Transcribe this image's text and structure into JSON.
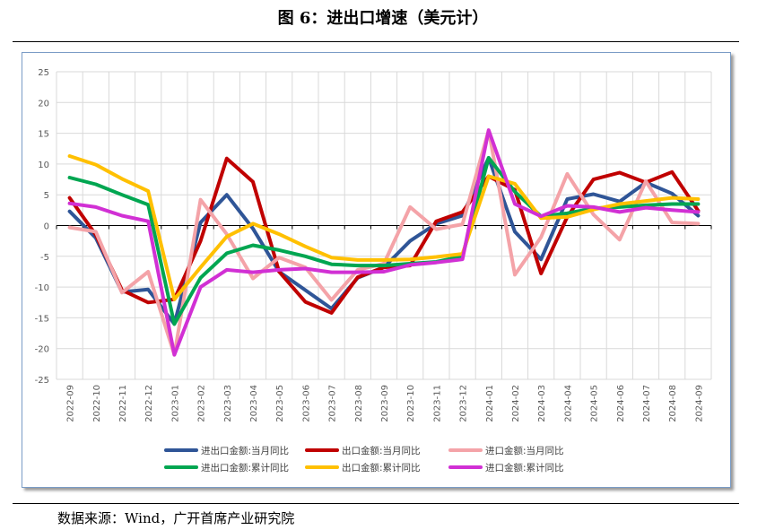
{
  "title": "图 6：进出口增速（美元计）",
  "source": "数据来源：Wind，广开首席产业研究院",
  "chart_data": {
    "type": "line",
    "title": "图 6：进出口增速（美元计）",
    "xlabel": "",
    "ylabel": "",
    "ylim": [
      -25,
      25
    ],
    "yticks": [
      25,
      20,
      15,
      10,
      5,
      0,
      -5,
      -10,
      -15,
      -20,
      -25
    ],
    "grid": true,
    "legend_position": "bottom",
    "categories": [
      "2022-09",
      "2022-10",
      "2022-11",
      "2022-12",
      "2023-01",
      "2023-02",
      "2023-03",
      "2023-04",
      "2023-05",
      "2023-06",
      "2023-07",
      "2023-08",
      "2023-09",
      "2023-10",
      "2023-11",
      "2023-12",
      "2024-01",
      "2024-02",
      "2024-03",
      "2024-04",
      "2024-05",
      "2024-06",
      "2024-07",
      "2024-08",
      "2024-09"
    ],
    "series": [
      {
        "name": "进出口金额:当月同比",
        "color": "#2f5597",
        "values": [
          2.3,
          -2.0,
          -10.8,
          -10.4,
          -16.0,
          0.5,
          5.0,
          -0.5,
          -7.5,
          -10.5,
          -13.5,
          -8.5,
          -6.8,
          -2.5,
          0.3,
          1.6,
          11.0,
          -1.0,
          -5.5,
          4.3,
          5.1,
          3.9,
          7.0,
          5.2,
          1.6
        ]
      },
      {
        "name": "出口金额:当月同比",
        "color": "#c00000",
        "values": [
          4.5,
          -1.5,
          -10.5,
          -12.5,
          -12.0,
          -2.5,
          10.9,
          7.1,
          -7.5,
          -12.4,
          -14.2,
          -8.4,
          -6.8,
          -6.5,
          0.7,
          2.2,
          8.0,
          5.8,
          -7.8,
          1.4,
          7.5,
          8.6,
          7.0,
          8.7,
          2.4
        ]
      },
      {
        "name": "进口金额:当月同比",
        "color": "#f4a3a8",
        "values": [
          -0.3,
          -1.0,
          -10.9,
          -7.5,
          -21.0,
          4.2,
          -1.4,
          -8.6,
          -5.2,
          -6.8,
          -12.1,
          -7.2,
          -6.2,
          3.0,
          -0.6,
          0.2,
          15.5,
          -8.0,
          -1.9,
          8.4,
          1.8,
          -2.3,
          7.2,
          0.5,
          0.3
        ]
      },
      {
        "name": "进出口金额:累计同比",
        "color": "#00a651",
        "values": [
          7.8,
          6.7,
          5.0,
          3.4,
          -16.0,
          -8.5,
          -4.5,
          -3.2,
          -4.0,
          -5.0,
          -6.3,
          -6.5,
          -6.5,
          -6.2,
          -5.9,
          -5.0,
          11.0,
          5.5,
          1.5,
          2.0,
          2.8,
          3.0,
          3.3,
          3.5,
          3.5
        ]
      },
      {
        "name": "出口金额:累计同比",
        "color": "#ffc000",
        "values": [
          11.3,
          9.9,
          7.6,
          5.6,
          -12.0,
          -6.8,
          -1.8,
          0.3,
          -1.4,
          -3.4,
          -5.2,
          -5.6,
          -5.6,
          -5.5,
          -5.1,
          -4.6,
          8.0,
          6.8,
          1.2,
          1.4,
          2.6,
          3.5,
          4.0,
          4.5,
          4.3
        ]
      },
      {
        "name": "进口金额:累计同比",
        "color": "#d130d4",
        "values": [
          3.6,
          3.0,
          1.6,
          0.7,
          -21.0,
          -10.0,
          -7.2,
          -7.6,
          -7.2,
          -7.0,
          -7.6,
          -7.6,
          -7.5,
          -6.4,
          -6.0,
          -5.5,
          15.5,
          3.5,
          1.5,
          3.2,
          3.0,
          2.2,
          2.9,
          2.5,
          2.2
        ]
      }
    ]
  }
}
